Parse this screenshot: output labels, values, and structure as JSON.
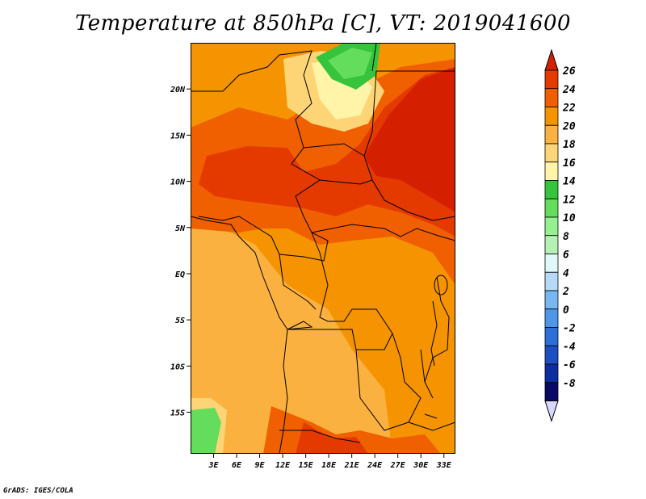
{
  "title": "Temperature at 850hPa [C], VT: 2019041600",
  "credit": "GrADS: IGES/COLA",
  "map": {
    "lon_range": [
      0,
      34.5
    ],
    "lat_range": [
      -19.5,
      25
    ],
    "x_ticks": [
      {
        "lon": 3,
        "label": "3E"
      },
      {
        "lon": 6,
        "label": "6E"
      },
      {
        "lon": 9,
        "label": "9E"
      },
      {
        "lon": 12,
        "label": "12E"
      },
      {
        "lon": 15,
        "label": "15E"
      },
      {
        "lon": 18,
        "label": "18E"
      },
      {
        "lon": 21,
        "label": "21E"
      },
      {
        "lon": 24,
        "label": "24E"
      },
      {
        "lon": 27,
        "label": "27E"
      },
      {
        "lon": 30,
        "label": "30E"
      },
      {
        "lon": 33,
        "label": "33E"
      }
    ],
    "y_ticks": [
      {
        "lat": 20,
        "label": "20N"
      },
      {
        "lat": 15,
        "label": "15N"
      },
      {
        "lat": 10,
        "label": "10N"
      },
      {
        "lat": 5,
        "label": "5N"
      },
      {
        "lat": 0,
        "label": "EQ"
      },
      {
        "lat": -5,
        "label": "5S"
      },
      {
        "lat": -10,
        "label": "10S"
      },
      {
        "lat": -15,
        "label": "15S"
      }
    ]
  },
  "colorbar": {
    "levels": [
      {
        "label": "26",
        "color": "#d42000"
      },
      {
        "label": "24",
        "color": "#e43a00"
      },
      {
        "label": "22",
        "color": "#f06000"
      },
      {
        "label": "20",
        "color": "#f59400"
      },
      {
        "label": "18",
        "color": "#fbb140"
      },
      {
        "label": "16",
        "color": "#fdd577"
      },
      {
        "label": "14",
        "color": "#fff4a8"
      },
      {
        "label": "12",
        "color": "#36c43c"
      },
      {
        "label": "10",
        "color": "#64dc5c"
      },
      {
        "label": "8",
        "color": "#96f091"
      },
      {
        "label": "6",
        "color": "#b5f0b5"
      },
      {
        "label": "4",
        "color": "#e0f9f8"
      },
      {
        "label": "2",
        "color": "#b5d9f7"
      },
      {
        "label": "0",
        "color": "#78b8f0"
      },
      {
        "label": "-2",
        "color": "#4d96e8"
      },
      {
        "label": "-4",
        "color": "#2d6fd8"
      },
      {
        "label": "-6",
        "color": "#1d4fc4"
      },
      {
        "label": "-8",
        "color": "#0d2ea0"
      }
    ],
    "bottom_color": "#0a0a66",
    "under_color": "#d8d8ff"
  }
}
